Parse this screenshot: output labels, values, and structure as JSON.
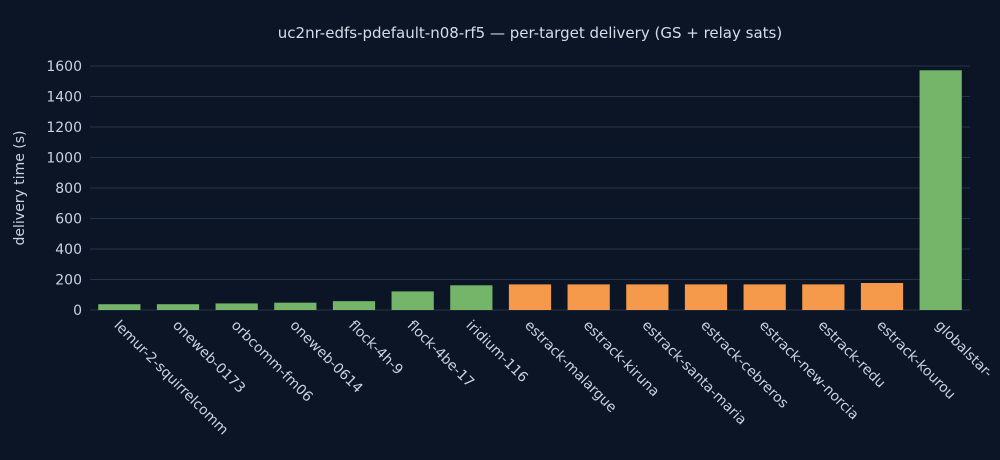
{
  "chart_data": {
    "type": "bar",
    "title": "uc2nr-edfs-pdefault-n08-rf5 — per-target delivery (GS + relay sats)",
    "xlabel": "",
    "ylabel": "delivery time (s)",
    "ylim": [
      0,
      1600
    ],
    "yticks": [
      0,
      200,
      400,
      600,
      800,
      1000,
      1200,
      1400,
      1600
    ],
    "grid": true,
    "categories": [
      "lemur-2-squirrelcomm",
      "oneweb-0173",
      "orbcomm-fm06",
      "oneweb-0614",
      "flock-4h-9",
      "flock-4be-17",
      "iridium-116",
      "estrack-malargue",
      "estrack-kiruna",
      "estrack-santa-maria",
      "estrack-cebreros",
      "estrack-new-norcia",
      "estrack-redu",
      "estrack-kourou",
      "globalstar-"
    ],
    "values": [
      38,
      38,
      43,
      48,
      58,
      122,
      162,
      168,
      168,
      168,
      168,
      168,
      168,
      177,
      1572
    ],
    "bar_colors": [
      "#74b56a",
      "#74b56a",
      "#74b56a",
      "#74b56a",
      "#74b56a",
      "#74b56a",
      "#74b56a",
      "#f5994a",
      "#f5994a",
      "#f5994a",
      "#f5994a",
      "#f5994a",
      "#f5994a",
      "#f5994a",
      "#74b56a"
    ]
  }
}
